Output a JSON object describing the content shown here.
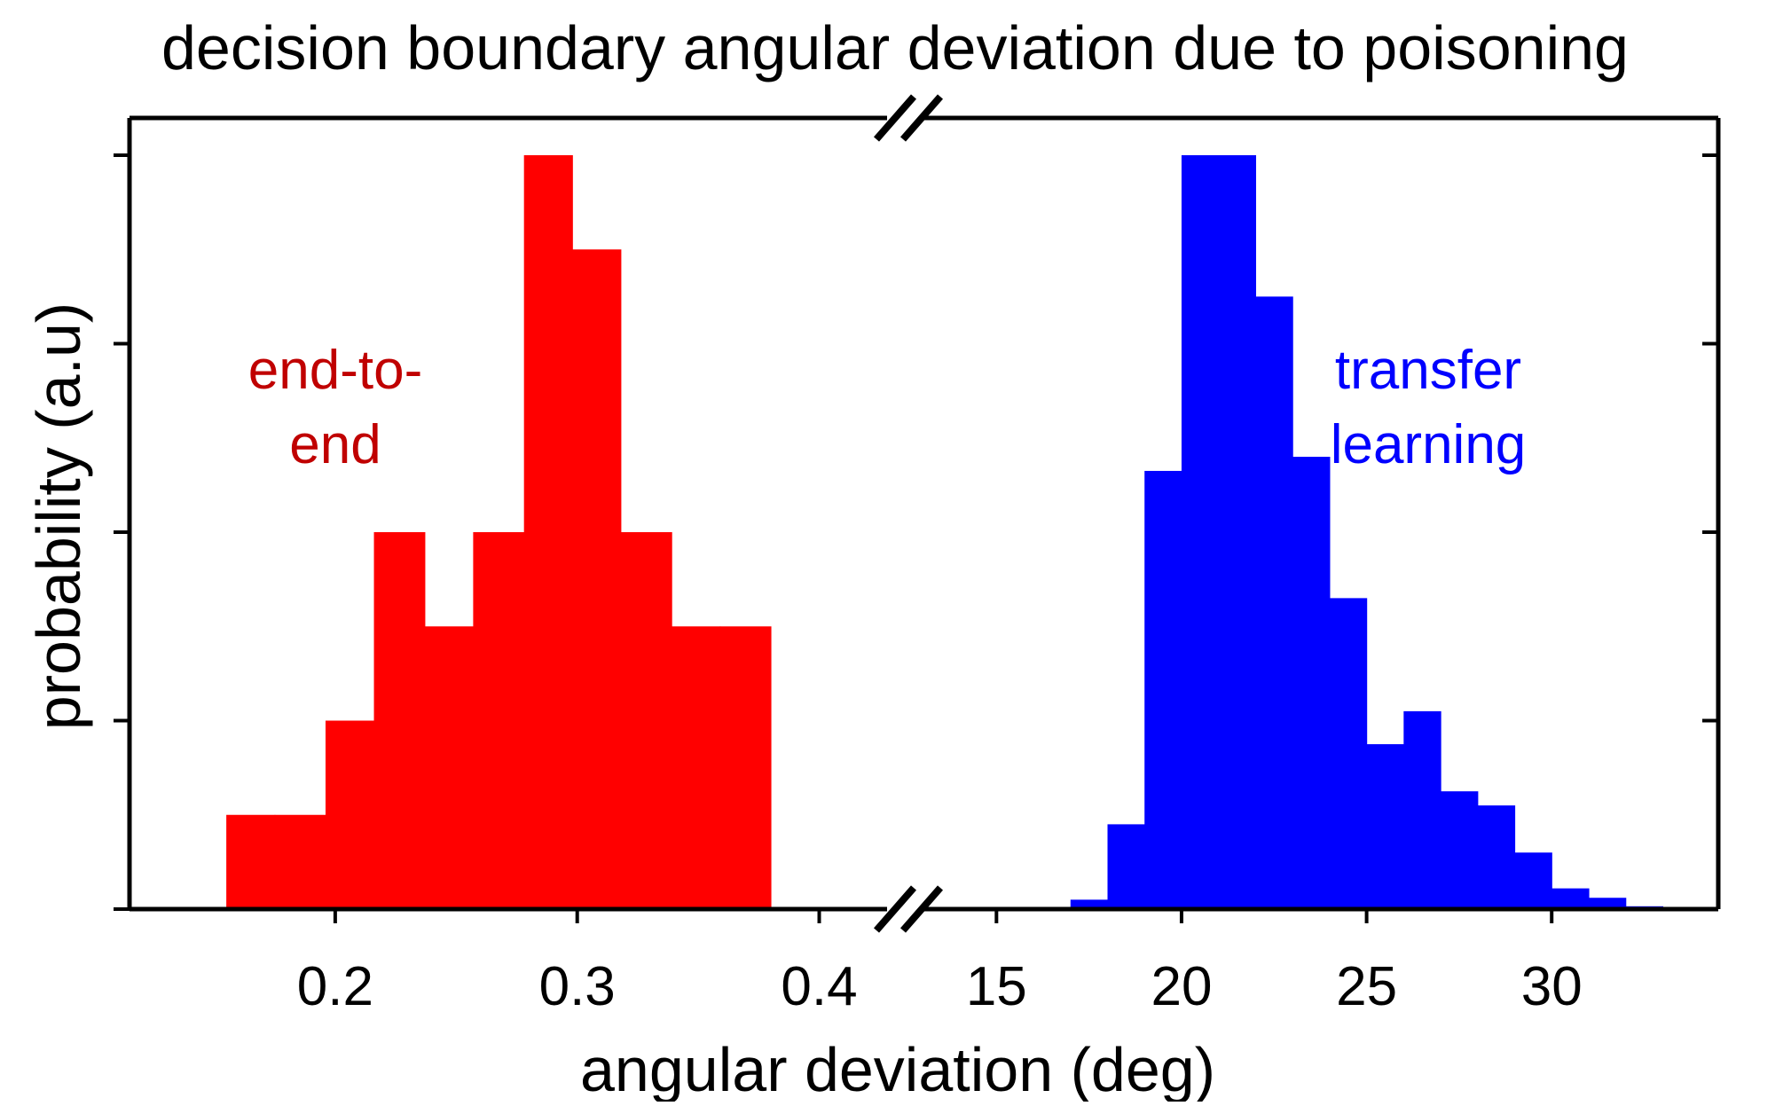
{
  "chart_data": {
    "type": "histogram",
    "title": "decision boundary angular deviation due to poisoning",
    "xlabel": "angular deviation (deg)",
    "ylabel": "probability (a.u)",
    "broken_x_axis": true,
    "y_tick_labels_shown": false,
    "ylim": [
      0,
      8
    ],
    "panels": [
      {
        "name": "left",
        "xlim": [
          0.115,
          0.435
        ],
        "xticks": [
          0.2,
          0.3,
          0.4
        ],
        "xtick_labels": [
          "0.2",
          "0.3",
          "0.4"
        ],
        "series": [
          {
            "annotation_lines": [
              "end-to-",
              "end"
            ],
            "color": "#ff0000",
            "label_color": "#c00000",
            "bin_edges": [
              0.155,
              0.175,
              0.196,
              0.216,
              0.237,
              0.257,
              0.278,
              0.298,
              0.318,
              0.339,
              0.359,
              0.38
            ],
            "values": [
              1,
              1,
              2,
              4,
              3,
              4,
              8,
              7,
              4,
              3,
              3
            ]
          }
        ]
      },
      {
        "name": "right",
        "xlim": [
          12.5,
          34.5
        ],
        "xticks": [
          15,
          20,
          25,
          30
        ],
        "xtick_labels": [
          "15",
          "20",
          "25",
          "30"
        ],
        "series": [
          {
            "annotation_lines": [
              "transfer",
              "learning"
            ],
            "color": "#0000ff",
            "label_color": "#0000ff",
            "bin_edges": [
              17.0,
              18.0,
              19.0,
              20.0,
              21.0,
              22.0,
              23.0,
              24.0,
              25.0,
              26.0,
              27.0,
              28.0,
              29.0,
              30.0,
              31.0,
              32.0,
              33.0
            ],
            "values": [
              0.1,
              0.9,
              4.65,
              8,
              8,
              6.5,
              4.8,
              3.3,
              1.75,
              2.1,
              1.25,
              1.1,
              0.6,
              0.22,
              0.12,
              0.03
            ]
          }
        ]
      }
    ],
    "grid": false,
    "legend": "none"
  }
}
